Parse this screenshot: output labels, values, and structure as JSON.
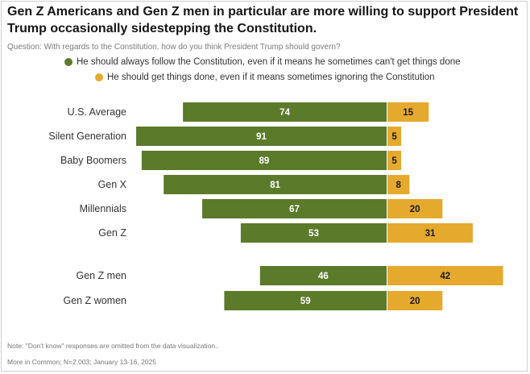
{
  "title": "Gen Z Americans and Gen Z men in particular are more willing to support President Trump occasionally sidestepping the Constitution.",
  "question": "Question: With regards to the Constitution, how do you think President Trump should govern?",
  "legend": [
    {
      "label": "He should always follow the Constitution, even if it means he sometimes can't get things done",
      "color": "#5b7a2a"
    },
    {
      "label": "He should get things done, even if it means sometimes ignoring the Constitution",
      "color": "#e5a92e"
    }
  ],
  "note": "Note: \"Don't know\" responses are omitted from the data visualization..",
  "source": "More in Common; N=2,003; January 13-16, 2025",
  "chart_data": {
    "type": "bar",
    "orientation": "diverging-horizontal",
    "categories": [
      "U.S. Average",
      "Silent Generation",
      "Baby Boomers",
      "Gen X",
      "Millennials",
      "Gen Z",
      "Gen Z men",
      "Gen Z women"
    ],
    "series": [
      {
        "name": "He should always follow the Constitution, even if it means he sometimes can't get things done",
        "values": [
          74,
          91,
          89,
          81,
          67,
          53,
          46,
          59
        ],
        "color": "#5b7a2a",
        "label_color": "#ffffff"
      },
      {
        "name": "He should get things done, even if it means sometimes ignoring the Constitution",
        "values": [
          15,
          5,
          5,
          8,
          20,
          31,
          42,
          20
        ],
        "color": "#e5a92e",
        "label_color": "#1a1a1a"
      }
    ],
    "title": "Gen Z Americans and Gen Z men in particular are more willing to support President Trump occasionally sidestepping the Constitution.",
    "xlabel": "",
    "ylabel": "",
    "xlim": [
      0,
      100
    ],
    "grid": false
  }
}
